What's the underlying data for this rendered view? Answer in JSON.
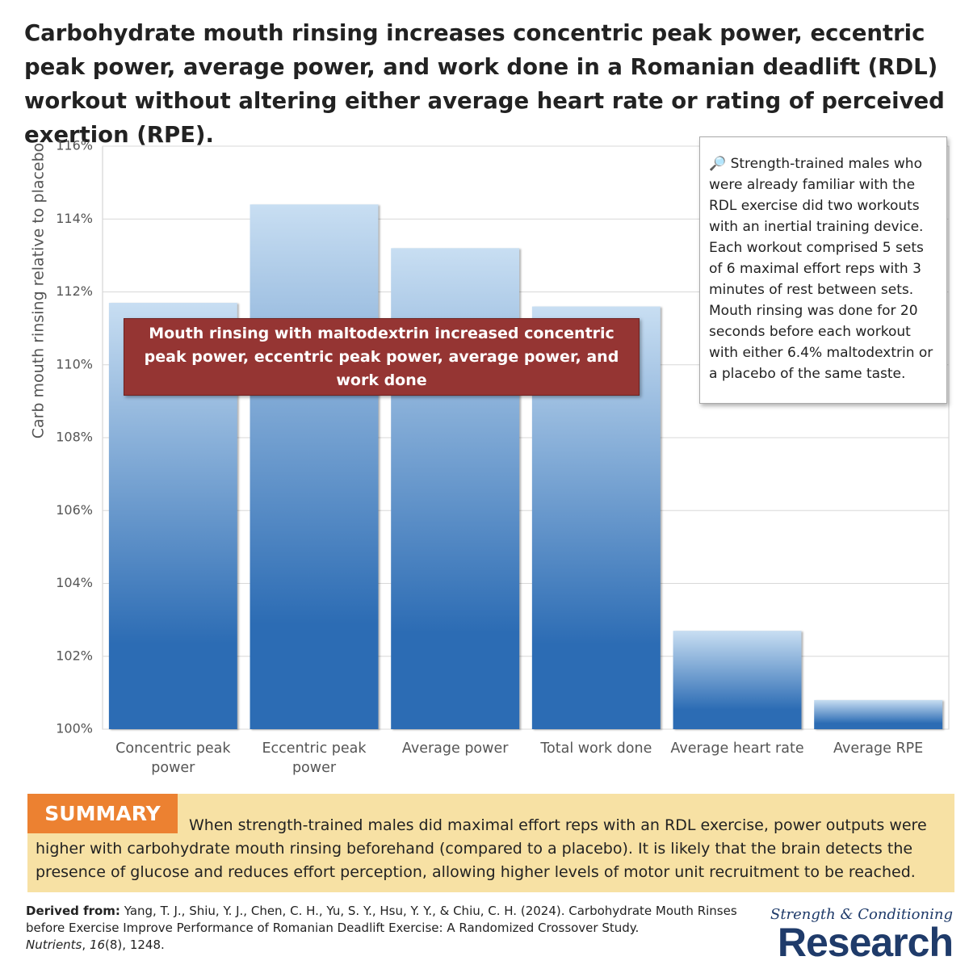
{
  "title": "Carbohydrate mouth rinsing increases concentric peak power, eccentric peak power, average power, and work done in a Romanian deadlift (RDL) workout without altering either average heart rate or rating of perceived exertion (RPE).",
  "chart_data": {
    "type": "bar",
    "y_label": "Carb mouth rinsing relative to placebo",
    "categories": [
      "Concentric peak power",
      "Eccentric peak power",
      "Average power",
      "Total work done",
      "Average heart rate",
      "Average RPE"
    ],
    "values": [
      111.7,
      114.4,
      113.2,
      111.6,
      102.7,
      100.8
    ],
    "gradient": [
      "#c8def2",
      "#2c6cb4"
    ],
    "ylim": [
      100,
      116
    ],
    "yticks": [
      {
        "value": 100,
        "label": "100%"
      },
      {
        "value": 102,
        "label": "102%"
      },
      {
        "value": 104,
        "label": "104%"
      },
      {
        "value": 106,
        "label": "106%"
      },
      {
        "value": 108,
        "label": "108%"
      },
      {
        "value": 110,
        "label": "110%"
      },
      {
        "value": 112,
        "label": "112%"
      },
      {
        "value": 114,
        "label": "114%"
      },
      {
        "value": 116,
        "label": "116%"
      }
    ],
    "grid": true,
    "annotation": "Mouth rinsing with maltodextrin increased concentric peak power, eccentric peak power, average power, and work done",
    "info": "🔎 Strength-trained males who were already familiar with the RDL exercise did two workouts with an inertial training device. Each workout comprised 5 sets of 6 maximal effort reps with 3 minutes of rest between sets. Mouth rinsing was done for 20 seconds before each workout with either 6.4% maltodextrin or a placebo of the same taste."
  },
  "summary": {
    "label": "SUMMARY",
    "text": "When strength-trained males did maximal effort reps with an RDL exercise, power outputs were higher with carbohydrate mouth rinsing beforehand (compared to a placebo). It is likely that the brain detects the presence of glucose and reduces effort perception, allowing higher levels of motor unit recruitment to be reached."
  },
  "citation": {
    "lead": "Derived from:",
    "text": "Yang, T. J., Shiu, Y. J., Chen, C. H., Yu, S. Y., Hsu, Y. Y., & Chiu, C. H. (2024). Carbohydrate Mouth Rinses before Exercise Improve Performance of Romanian Deadlift Exercise: A Randomized Crossover Study.",
    "journal": "Nutrients",
    "sep1": ",",
    "volume": "16",
    "rest": "(8), 1248."
  },
  "logo": {
    "top": "Strength & Conditioning",
    "bottom": "Research"
  }
}
